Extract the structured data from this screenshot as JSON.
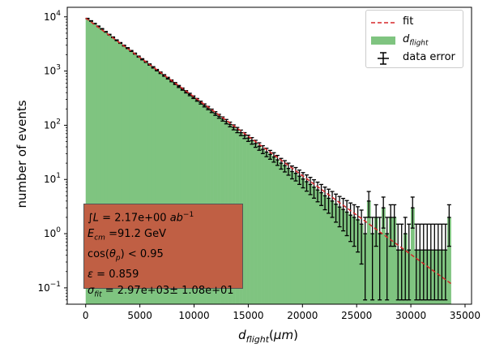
{
  "chart_data": {
    "type": "bar",
    "xlabel": "d_flight(μm)",
    "ylabel": "number of events",
    "scale_y": "log",
    "xlim": [
      -1700,
      35600
    ],
    "ylim": [
      0.05,
      15000
    ],
    "xticks": [
      0,
      5000,
      10000,
      15000,
      20000,
      25000,
      30000,
      35000
    ],
    "xtick_labels": [
      "0",
      "5000",
      "10000",
      "15000",
      "20000",
      "25000",
      "30000",
      "35000"
    ],
    "yticks": [
      0.1,
      1,
      10,
      100,
      1000,
      10000
    ],
    "ytick_labels": [
      {
        "base": "10",
        "exp": "−1"
      },
      {
        "base": "10",
        "exp": "0"
      },
      {
        "base": "10",
        "exp": "1"
      },
      {
        "base": "10",
        "exp": "2"
      },
      {
        "base": "10",
        "exp": "3"
      },
      {
        "base": "10",
        "exp": "4"
      }
    ],
    "series": [
      {
        "name": "fit",
        "kind": "line",
        "color": "#d62728",
        "style": "dashed",
        "x_range": [
          0,
          33700
        ],
        "y_start": 9500,
        "y_end": 0.12
      },
      {
        "name": "d_flight",
        "kind": "histogram",
        "color": "#7fc480",
        "bin_width": 337,
        "x_range": [
          0,
          33700
        ]
      },
      {
        "name": "data error",
        "kind": "errorbar",
        "color": "#000000"
      }
    ],
    "bins": {
      "x": [
        169,
        506,
        843,
        1180,
        1517,
        1854,
        2191,
        2528,
        2865,
        3202,
        3539,
        3876,
        4213,
        4550,
        4887,
        5224,
        5561,
        5898,
        6235,
        6572,
        6909,
        7246,
        7583,
        7920,
        8257,
        8594,
        8931,
        9268,
        9605,
        9942,
        10279,
        10616,
        10953,
        11290,
        11627,
        11964,
        12301,
        12638,
        12975,
        13312,
        13649,
        13986,
        14323,
        14660,
        14997,
        15334,
        15671,
        16008,
        16345,
        16682,
        17019,
        17356,
        17693,
        18030,
        18367,
        18704,
        19041,
        19378,
        19715,
        20052,
        20389,
        20726,
        21063,
        21400,
        21737,
        22074,
        22411,
        22748,
        23085,
        23422,
        23759,
        24096,
        24433,
        24770,
        25107,
        25444,
        25781,
        26118,
        26455,
        26792,
        27129,
        27466,
        27803,
        28140,
        28477,
        28814,
        29151,
        29488,
        29825,
        30162,
        30499,
        30836,
        31173,
        31510,
        31847,
        32184,
        32521,
        32858,
        33195,
        33532
      ],
      "y": [
        9300,
        8400,
        7500,
        6700,
        6000,
        5300,
        4700,
        4200,
        3700,
        3300,
        2950,
        2650,
        2350,
        2100,
        1850,
        1650,
        1480,
        1320,
        1170,
        1040,
        930,
        830,
        740,
        660,
        590,
        520,
        465,
        415,
        370,
        330,
        295,
        262,
        233,
        208,
        185,
        165,
        147,
        131,
        117,
        104,
        92,
        82,
        73,
        65,
        58,
        52,
        46,
        41,
        36,
        32,
        29,
        26,
        23,
        20,
        18,
        16,
        14,
        13,
        11.5,
        10.2,
        9.1,
        8.1,
        7.2,
        6.4,
        5.7,
        5,
        4.5,
        4,
        3.5,
        3.1,
        2.8,
        2.5,
        2.2,
        2,
        1.8,
        1.5,
        1,
        4,
        1,
        2,
        1,
        3,
        1,
        2,
        2,
        0.5,
        0.5,
        1,
        0.5,
        3,
        0.5,
        0.5,
        0.5,
        0.5,
        0.5,
        0.5,
        0.5,
        0.5,
        0.5,
        2
      ]
    }
  },
  "legend": {
    "fit": "fit",
    "dflight_base": "d",
    "dflight_sub": "flight",
    "data_error": "data error"
  },
  "annotation": {
    "line1_lum_prefix": "∫",
    "line1_lum_var": "L",
    "line1_lum_eq": " = 2.17e+00 ",
    "line1_lum_unit": "ab",
    "line1_lum_exp": "−1",
    "line2_var": "E",
    "line2_sub": "cm",
    "line2_val": " =91.2 GeV",
    "line3_pre": "cos(",
    "line3_theta": "θ",
    "line3_sub": "p",
    "line3_post": ") < 0.95",
    "line4_var": "ε",
    "line4_val": " =  0.859",
    "line5_var": "σ",
    "line5_sub": "fit",
    "line5_val": " = 2.97e+03± 1.08e+01"
  }
}
